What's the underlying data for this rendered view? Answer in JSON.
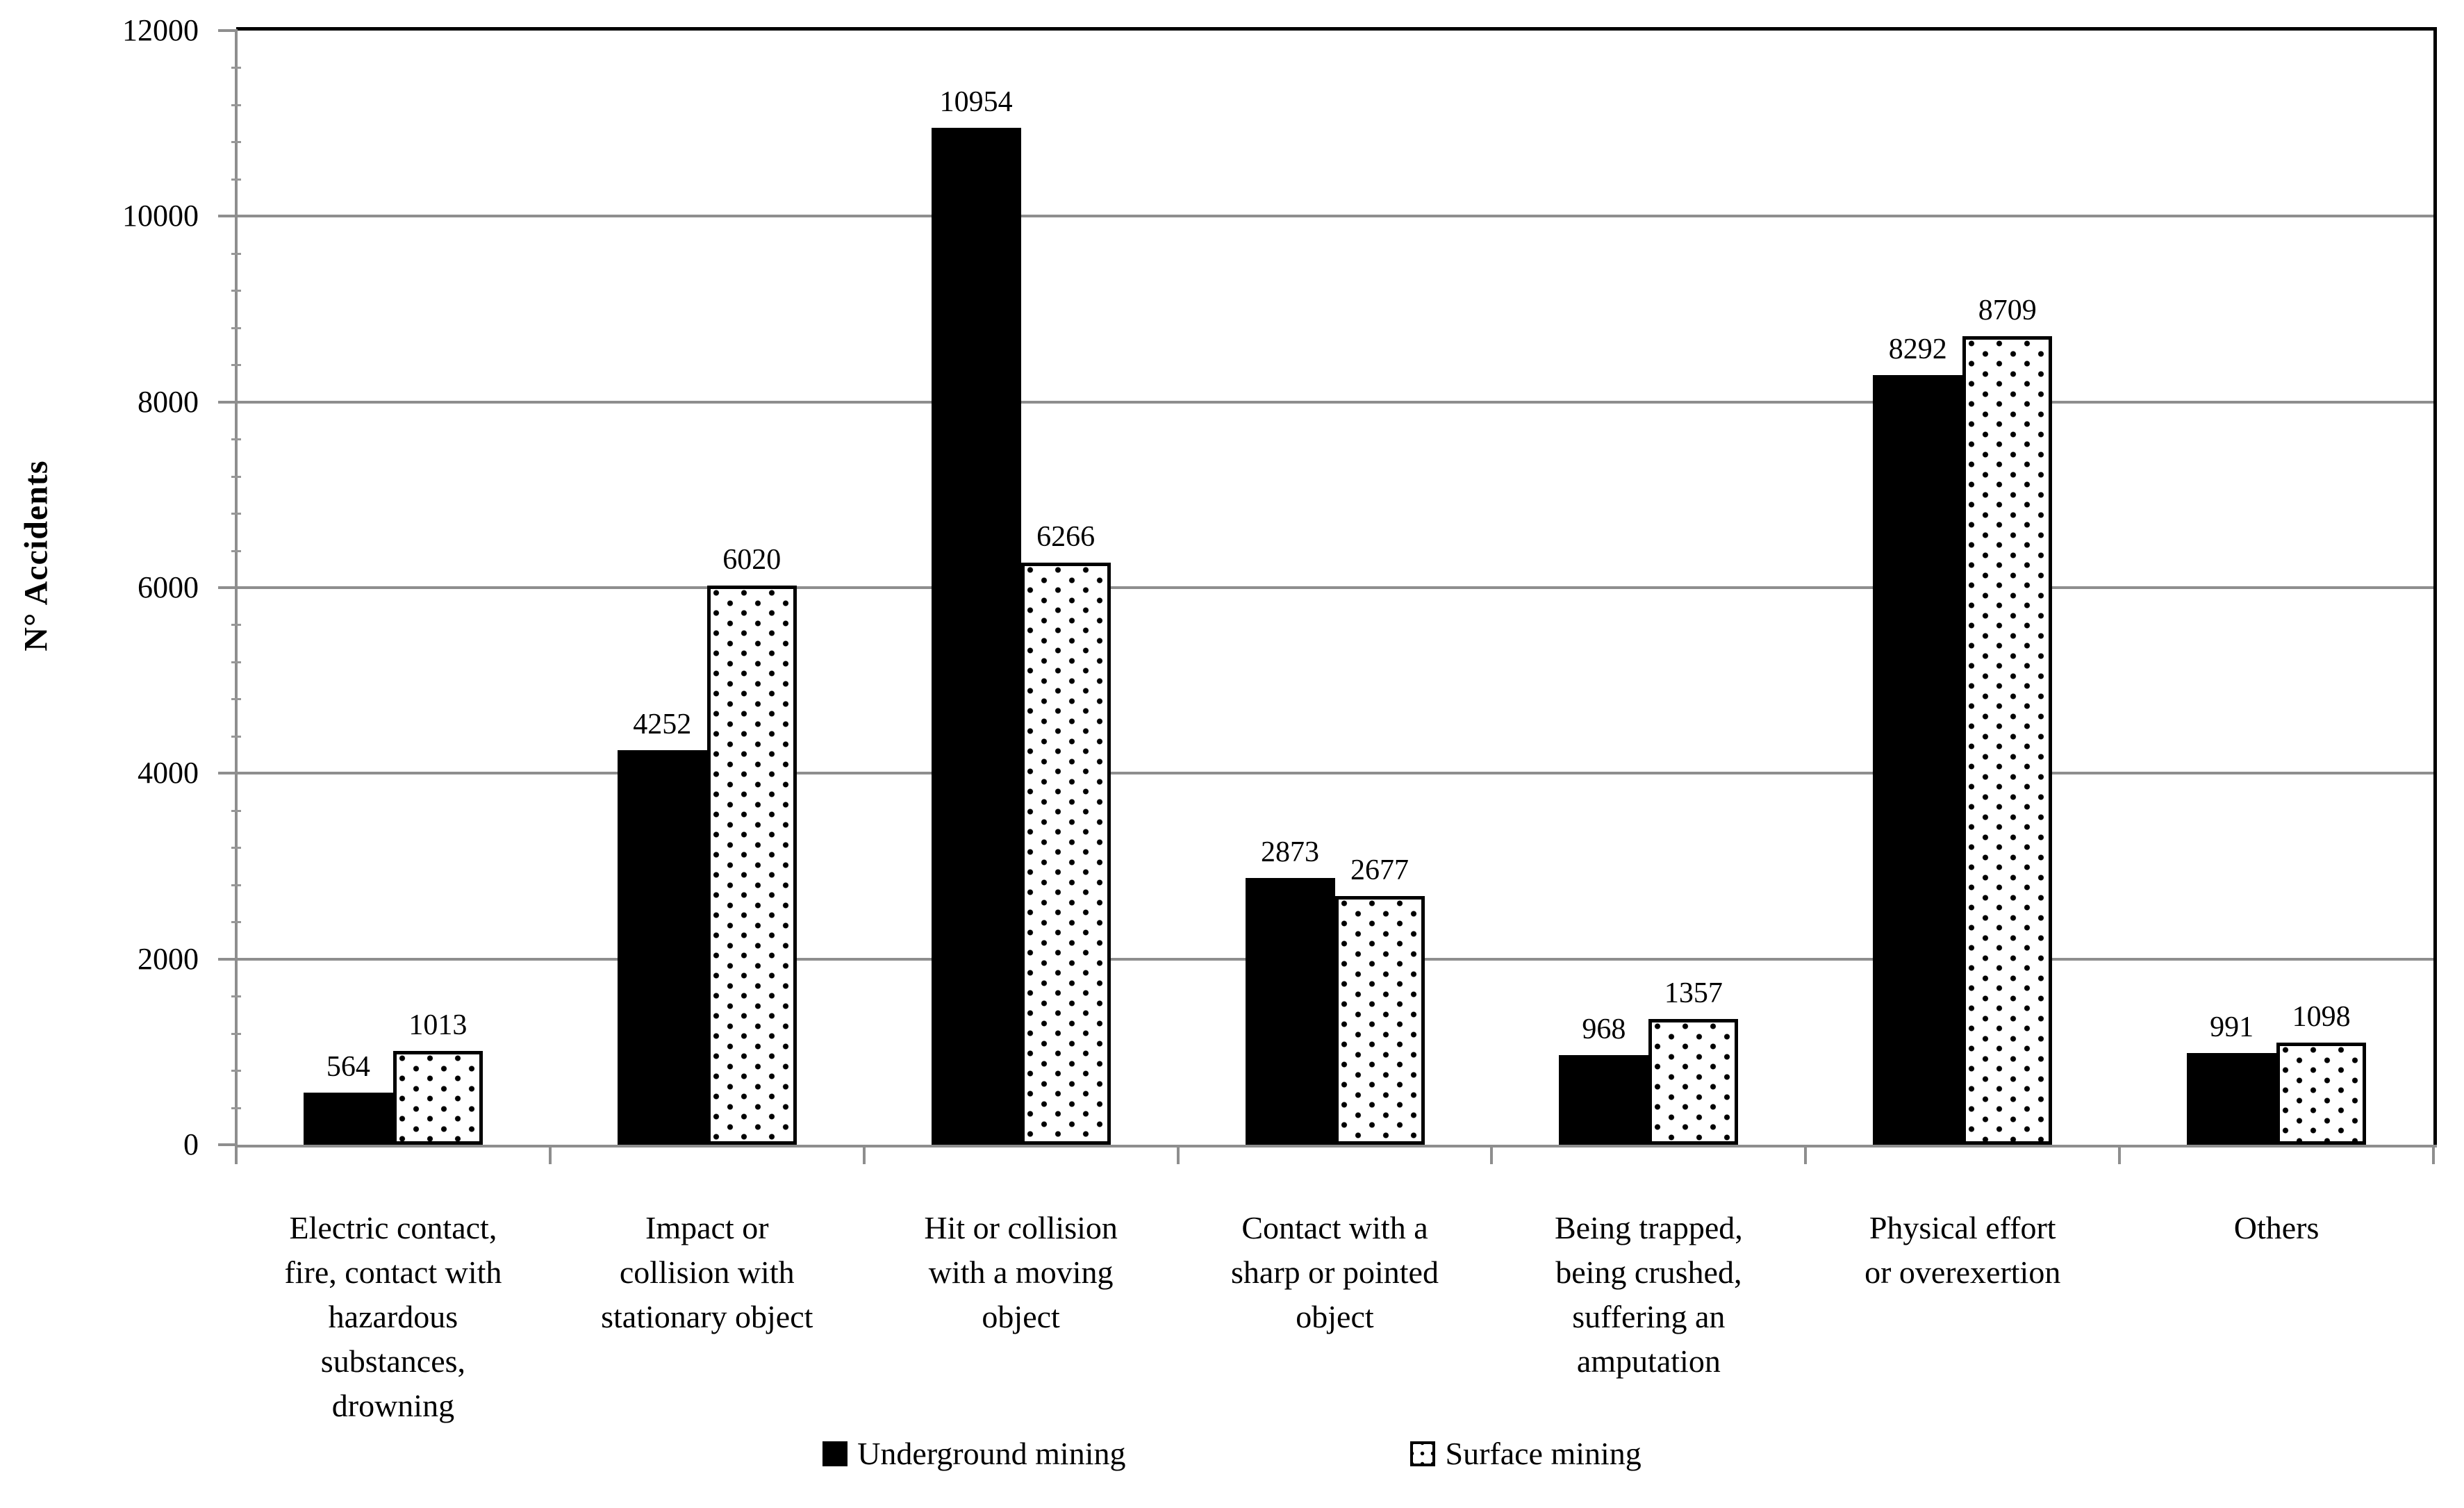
{
  "page": {
    "background": "#ffffff"
  },
  "chart_data": {
    "type": "bar",
    "title": "",
    "ylabel": "N° Accidents",
    "xlabel": "",
    "ylim": [
      0,
      12000
    ],
    "y_ticks": [
      0,
      2000,
      4000,
      6000,
      8000,
      10000,
      12000
    ],
    "y_minor_tick_unit": 400,
    "grid": "horizontal-major-gridlines",
    "legend_position": "bottom-center",
    "data_labels": "above-bars",
    "categories": [
      "Electric contact, fire, contact with hazardous substances, drowning",
      "Impact or collision with stationary object",
      "Hit or collision with a moving object",
      "Contact with a sharp or pointed object",
      "Being trapped, being crushed, suffering an amputation",
      "Physical effort or overexertion",
      "Others"
    ],
    "category_label_lines": [
      [
        "Electric contact,",
        "fire, contact with",
        "hazardous",
        "substances,",
        "drowning"
      ],
      [
        "Impact or",
        "collision with",
        "stationary object"
      ],
      [
        "Hit or collision",
        "with a moving",
        "object"
      ],
      [
        "Contact with a",
        "sharp or pointed",
        "object"
      ],
      [
        "Being trapped,",
        "being crushed,",
        "suffering an",
        "amputation"
      ],
      [
        "Physical effort",
        "or overexertion"
      ],
      [
        "Others"
      ]
    ],
    "series": [
      {
        "name": "Underground mining",
        "fill": "solid-black",
        "values": [
          564,
          4252,
          10954,
          2873,
          968,
          8292,
          991
        ]
      },
      {
        "name": "Surface mining",
        "fill": "dot-pattern",
        "values": [
          1013,
          6020,
          6266,
          2677,
          1357,
          8709,
          1098
        ]
      }
    ],
    "colors": {
      "bar_fill": "#000000",
      "pattern_dots": "#000000",
      "pattern_background": "#ffffff",
      "gridline": "#8e8e8e",
      "axis_line": "#8e8e8e",
      "plot_border": "#000000",
      "text": "#000000"
    }
  }
}
